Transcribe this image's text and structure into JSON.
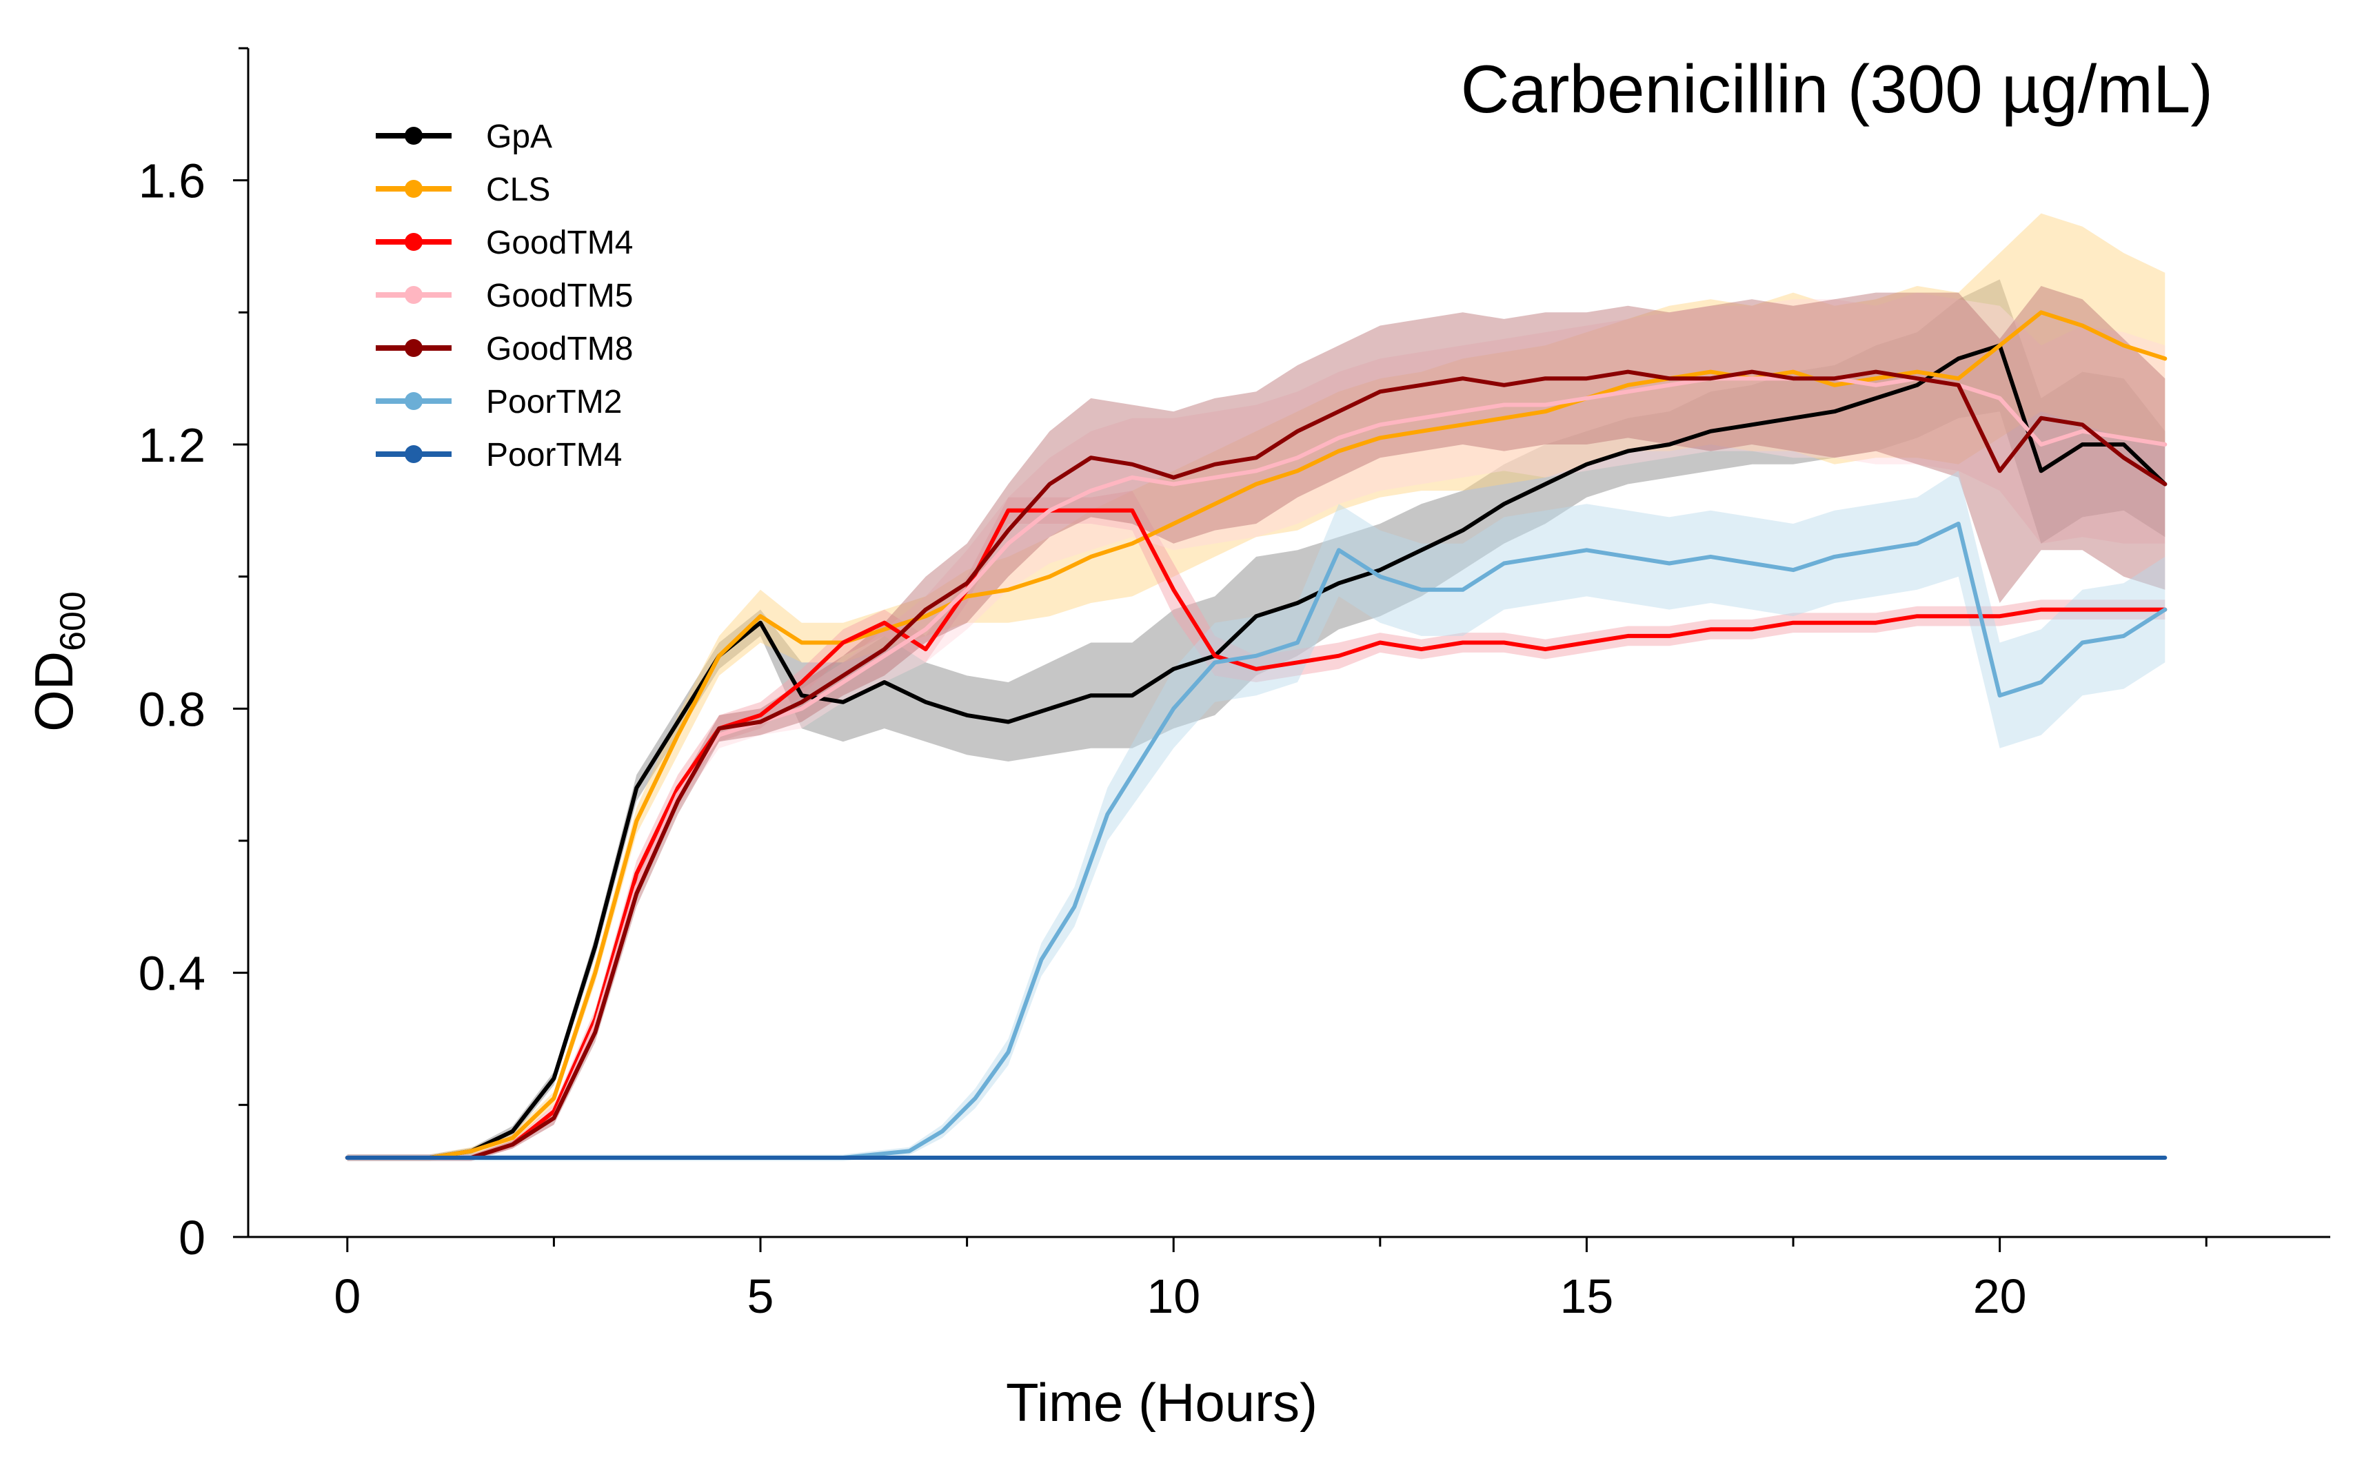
{
  "chart_data": {
    "type": "line",
    "title": "Carbenicillin (300 µg/mL)",
    "xlabel": "Time (Hours)",
    "ylabel_main": "OD",
    "ylabel_sub": "600",
    "xlim": [
      -1.2,
      24
    ],
    "ylim": [
      0,
      1.8
    ],
    "xticks": [
      0,
      5,
      10,
      15,
      20
    ],
    "xtick_labels": [
      "0",
      "5",
      "10",
      "15",
      "20"
    ],
    "yticks": [
      0,
      0.4,
      0.8,
      1.2,
      1.6
    ],
    "ytick_labels": [
      "0",
      "0.4",
      "0.8",
      "1.2",
      "1.6"
    ],
    "legend_position": "top-left",
    "grid": false,
    "series": [
      {
        "name": "GpA",
        "color": "#000000",
        "band_color": "#808080",
        "x": [
          0,
          1,
          1.5,
          2,
          2.5,
          3,
          3.5,
          4,
          4.5,
          5,
          5.5,
          6,
          6.5,
          7,
          7.5,
          8,
          8.5,
          9,
          9.5,
          10,
          10.5,
          11,
          11.5,
          12,
          12.5,
          13,
          13.5,
          14,
          14.5,
          15,
          15.5,
          16,
          16.5,
          17,
          17.5,
          18,
          18.5,
          19,
          19.5,
          20,
          20.5,
          21,
          21.5,
          22
        ],
        "y": [
          0.12,
          0.12,
          0.13,
          0.16,
          0.24,
          0.44,
          0.68,
          0.78,
          0.88,
          0.93,
          0.82,
          0.81,
          0.84,
          0.81,
          0.79,
          0.78,
          0.8,
          0.82,
          0.82,
          0.86,
          0.88,
          0.94,
          0.96,
          0.99,
          1.01,
          1.04,
          1.07,
          1.11,
          1.14,
          1.17,
          1.19,
          1.2,
          1.22,
          1.23,
          1.24,
          1.25,
          1.27,
          1.29,
          1.33,
          1.35,
          1.16,
          1.2,
          1.2,
          1.14
        ],
        "err": [
          0.005,
          0.005,
          0.005,
          0.008,
          0.01,
          0.015,
          0.02,
          0.02,
          0.02,
          0.02,
          0.05,
          0.06,
          0.07,
          0.06,
          0.06,
          0.06,
          0.07,
          0.08,
          0.08,
          0.09,
          0.09,
          0.09,
          0.08,
          0.07,
          0.07,
          0.07,
          0.06,
          0.06,
          0.06,
          0.05,
          0.05,
          0.05,
          0.06,
          0.06,
          0.07,
          0.07,
          0.08,
          0.08,
          0.09,
          0.1,
          0.11,
          0.11,
          0.1,
          0.08
        ]
      },
      {
        "name": "CLS",
        "color": "#FFA500",
        "band_color": "#FFD27F",
        "x": [
          0,
          1,
          1.5,
          2,
          2.5,
          3,
          3.5,
          4,
          4.5,
          5,
          5.5,
          6,
          6.5,
          7,
          7.5,
          8,
          8.5,
          9,
          9.5,
          10,
          10.5,
          11,
          11.5,
          12,
          12.5,
          13,
          13.5,
          14,
          14.5,
          15,
          15.5,
          16,
          16.5,
          17,
          17.5,
          18,
          18.5,
          19,
          19.5,
          20,
          20.5,
          21,
          21.5,
          22
        ],
        "y": [
          0.12,
          0.12,
          0.13,
          0.15,
          0.21,
          0.4,
          0.63,
          0.76,
          0.88,
          0.94,
          0.9,
          0.9,
          0.92,
          0.94,
          0.97,
          0.98,
          1.0,
          1.03,
          1.05,
          1.08,
          1.11,
          1.14,
          1.16,
          1.19,
          1.21,
          1.22,
          1.23,
          1.24,
          1.25,
          1.27,
          1.29,
          1.3,
          1.31,
          1.3,
          1.31,
          1.29,
          1.3,
          1.31,
          1.3,
          1.35,
          1.4,
          1.38,
          1.35,
          1.33
        ],
        "err": [
          0.005,
          0.005,
          0.006,
          0.008,
          0.01,
          0.015,
          0.02,
          0.03,
          0.03,
          0.04,
          0.03,
          0.03,
          0.03,
          0.03,
          0.04,
          0.05,
          0.06,
          0.07,
          0.08,
          0.08,
          0.08,
          0.08,
          0.09,
          0.09,
          0.09,
          0.09,
          0.1,
          0.1,
          0.1,
          0.1,
          0.1,
          0.11,
          0.11,
          0.11,
          0.12,
          0.12,
          0.12,
          0.13,
          0.13,
          0.14,
          0.15,
          0.15,
          0.14,
          0.13
        ]
      },
      {
        "name": "GoodTM4",
        "color": "#FF0000",
        "band_color": "#F4A0A8",
        "x": [
          0,
          1,
          1.5,
          2,
          2.5,
          3,
          3.5,
          4,
          4.5,
          5,
          5.5,
          6,
          6.5,
          7,
          7.5,
          8,
          8.5,
          9,
          9.5,
          10,
          10.5,
          11,
          11.5,
          12,
          12.5,
          13,
          13.5,
          14,
          14.5,
          15,
          15.5,
          16,
          16.5,
          17,
          17.5,
          18,
          18.5,
          19,
          19.5,
          20,
          20.5,
          21,
          21.5,
          22
        ],
        "y": [
          0.12,
          0.12,
          0.12,
          0.14,
          0.19,
          0.33,
          0.55,
          0.68,
          0.77,
          0.79,
          0.84,
          0.9,
          0.93,
          0.89,
          0.98,
          1.1,
          1.1,
          1.1,
          1.1,
          0.98,
          0.88,
          0.86,
          0.87,
          0.88,
          0.9,
          0.89,
          0.9,
          0.9,
          0.89,
          0.9,
          0.91,
          0.91,
          0.92,
          0.92,
          0.93,
          0.93,
          0.93,
          0.94,
          0.94,
          0.94,
          0.95,
          0.95,
          0.95,
          0.95
        ],
        "err": [
          0.005,
          0.005,
          0.005,
          0.006,
          0.01,
          0.015,
          0.02,
          0.02,
          0.02,
          0.02,
          0.02,
          0.02,
          0.02,
          0.02,
          0.02,
          0.02,
          0.02,
          0.02,
          0.03,
          0.04,
          0.03,
          0.02,
          0.02,
          0.02,
          0.015,
          0.015,
          0.015,
          0.015,
          0.015,
          0.015,
          0.015,
          0.015,
          0.015,
          0.015,
          0.015,
          0.015,
          0.015,
          0.015,
          0.015,
          0.015,
          0.015,
          0.015,
          0.015,
          0.015
        ]
      },
      {
        "name": "GoodTM5",
        "color": "#FFB6C1",
        "band_color": "#FFD6DD",
        "x": [
          0,
          1,
          1.5,
          2,
          2.5,
          3,
          3.5,
          4,
          4.5,
          5,
          5.5,
          6,
          6.5,
          7,
          7.5,
          8,
          8.5,
          9,
          9.5,
          10,
          10.5,
          11,
          11.5,
          12,
          12.5,
          13,
          13.5,
          14,
          14.5,
          15,
          15.5,
          16,
          16.5,
          17,
          17.5,
          18,
          18.5,
          19,
          19.5,
          20,
          20.5,
          21,
          21.5,
          22
        ],
        "y": [
          0.12,
          0.12,
          0.12,
          0.14,
          0.18,
          0.32,
          0.53,
          0.67,
          0.76,
          0.78,
          0.8,
          0.84,
          0.88,
          0.92,
          0.98,
          1.05,
          1.1,
          1.13,
          1.15,
          1.14,
          1.15,
          1.16,
          1.18,
          1.21,
          1.23,
          1.24,
          1.25,
          1.26,
          1.26,
          1.27,
          1.28,
          1.29,
          1.3,
          1.3,
          1.3,
          1.3,
          1.29,
          1.3,
          1.29,
          1.27,
          1.2,
          1.22,
          1.21,
          1.2
        ],
        "err": [
          0.005,
          0.005,
          0.005,
          0.006,
          0.01,
          0.015,
          0.02,
          0.02,
          0.02,
          0.02,
          0.03,
          0.03,
          0.04,
          0.05,
          0.06,
          0.07,
          0.08,
          0.09,
          0.09,
          0.1,
          0.1,
          0.1,
          0.1,
          0.1,
          0.1,
          0.1,
          0.1,
          0.1,
          0.11,
          0.11,
          0.11,
          0.11,
          0.11,
          0.11,
          0.12,
          0.12,
          0.12,
          0.13,
          0.13,
          0.14,
          0.15,
          0.16,
          0.16,
          0.15
        ]
      },
      {
        "name": "GoodTM8",
        "color": "#8B0000",
        "band_color": "#B76E70",
        "x": [
          0,
          1,
          1.5,
          2,
          2.5,
          3,
          3.5,
          4,
          4.5,
          5,
          5.5,
          6,
          6.5,
          7,
          7.5,
          8,
          8.5,
          9,
          9.5,
          10,
          10.5,
          11,
          11.5,
          12,
          12.5,
          13,
          13.5,
          14,
          14.5,
          15,
          15.5,
          16,
          16.5,
          17,
          17.5,
          18,
          18.5,
          19,
          19.5,
          20,
          20.5,
          21,
          21.5,
          22
        ],
        "y": [
          0.12,
          0.12,
          0.12,
          0.14,
          0.18,
          0.31,
          0.52,
          0.66,
          0.77,
          0.78,
          0.81,
          0.85,
          0.89,
          0.95,
          0.99,
          1.07,
          1.14,
          1.18,
          1.17,
          1.15,
          1.17,
          1.18,
          1.22,
          1.25,
          1.28,
          1.29,
          1.3,
          1.29,
          1.3,
          1.3,
          1.31,
          1.3,
          1.3,
          1.31,
          1.3,
          1.3,
          1.31,
          1.3,
          1.29,
          1.16,
          1.24,
          1.23,
          1.18,
          1.14
        ],
        "err": [
          0.005,
          0.005,
          0.005,
          0.006,
          0.01,
          0.015,
          0.02,
          0.02,
          0.02,
          0.02,
          0.03,
          0.03,
          0.04,
          0.05,
          0.06,
          0.07,
          0.08,
          0.09,
          0.09,
          0.1,
          0.1,
          0.1,
          0.1,
          0.1,
          0.1,
          0.1,
          0.1,
          0.1,
          0.1,
          0.1,
          0.1,
          0.1,
          0.11,
          0.11,
          0.11,
          0.12,
          0.12,
          0.13,
          0.14,
          0.2,
          0.2,
          0.19,
          0.18,
          0.16
        ]
      },
      {
        "name": "PoorTM2",
        "color": "#6BAED6",
        "band_color": "#B9D9EC",
        "x": [
          0,
          2,
          4,
          6,
          6.8,
          7.2,
          7.6,
          8,
          8.4,
          8.8,
          9.2,
          9.6,
          10,
          10.5,
          11,
          11.5,
          12,
          12.5,
          13,
          13.5,
          14,
          14.5,
          15,
          15.5,
          16,
          16.5,
          17,
          17.5,
          18,
          18.5,
          19,
          19.5,
          20,
          20.5,
          21,
          21.5,
          22
        ],
        "y": [
          0.12,
          0.12,
          0.12,
          0.12,
          0.13,
          0.16,
          0.21,
          0.28,
          0.42,
          0.5,
          0.64,
          0.72,
          0.8,
          0.87,
          0.88,
          0.9,
          1.04,
          1.0,
          0.98,
          0.98,
          1.02,
          1.03,
          1.04,
          1.03,
          1.02,
          1.03,
          1.02,
          1.01,
          1.03,
          1.04,
          1.05,
          1.08,
          0.82,
          0.84,
          0.9,
          0.91,
          0.95
        ],
        "err": [
          0.005,
          0.005,
          0.005,
          0.005,
          0.006,
          0.01,
          0.015,
          0.02,
          0.025,
          0.03,
          0.04,
          0.05,
          0.06,
          0.06,
          0.06,
          0.06,
          0.07,
          0.07,
          0.07,
          0.07,
          0.07,
          0.07,
          0.07,
          0.07,
          0.07,
          0.07,
          0.07,
          0.07,
          0.07,
          0.07,
          0.07,
          0.08,
          0.08,
          0.08,
          0.08,
          0.08,
          0.08
        ]
      },
      {
        "name": "PoorTM4",
        "color": "#1F5FA8",
        "band_color": "#9DB9DB",
        "x": [
          0,
          2,
          4,
          6,
          8,
          10,
          12,
          14,
          16,
          18,
          20,
          22
        ],
        "y": [
          0.12,
          0.12,
          0.12,
          0.12,
          0.12,
          0.12,
          0.12,
          0.12,
          0.12,
          0.12,
          0.12,
          0.12
        ],
        "err": [
          0.003,
          0.003,
          0.003,
          0.003,
          0.003,
          0.003,
          0.003,
          0.003,
          0.003,
          0.003,
          0.003,
          0.003
        ]
      }
    ]
  }
}
